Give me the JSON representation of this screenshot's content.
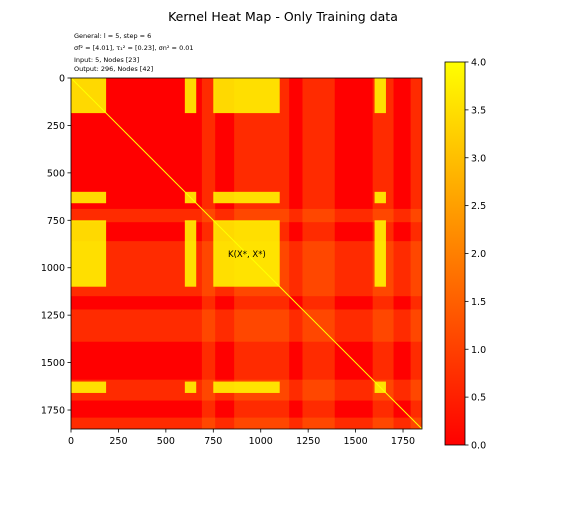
{
  "title": "Kernel Heat Map - Only Training data",
  "info": {
    "line1": "General: l = 5, step = 6",
    "line2": "σf² = [4.01], τ₁² = [0.23], σn² = 0.01",
    "line3": "Input: 5, Nodes [23]",
    "line4": "Output: 296, Nodes [42]"
  },
  "annotation": "K(X*, X*)",
  "chart_data": {
    "type": "heatmap",
    "title": "Kernel Heat Map - Only Training data",
    "xlabel": "",
    "ylabel": "",
    "n": 1850,
    "xlim": [
      0,
      1850
    ],
    "ylim": [
      1850,
      0
    ],
    "x_ticks": [
      0,
      250,
      500,
      750,
      1000,
      1250,
      1500,
      1750
    ],
    "y_ticks": [
      0,
      250,
      500,
      750,
      1000,
      1250,
      1500,
      1750
    ],
    "colormap": "autumn",
    "colorbar": {
      "min": 0.0,
      "max": 4.0,
      "ticks": [
        "0.0",
        "0.5",
        "1.0",
        "1.5",
        "2.0",
        "2.5",
        "3.0",
        "3.5",
        "4.0"
      ]
    },
    "diagonal_value": 4.0,
    "background_value": 0.0,
    "high_blocks": [
      [
        0,
        185
      ],
      [
        600,
        660
      ],
      [
        750,
        1100
      ],
      [
        1600,
        1660
      ]
    ],
    "medium_bands": [
      [
        690,
        760
      ],
      [
        860,
        1150
      ],
      [
        1220,
        1390
      ],
      [
        1590,
        1700
      ],
      [
        1790,
        1850
      ]
    ],
    "colors": {
      "low": "#ff0000",
      "high": "#ffff00",
      "frame": "#000000"
    }
  }
}
